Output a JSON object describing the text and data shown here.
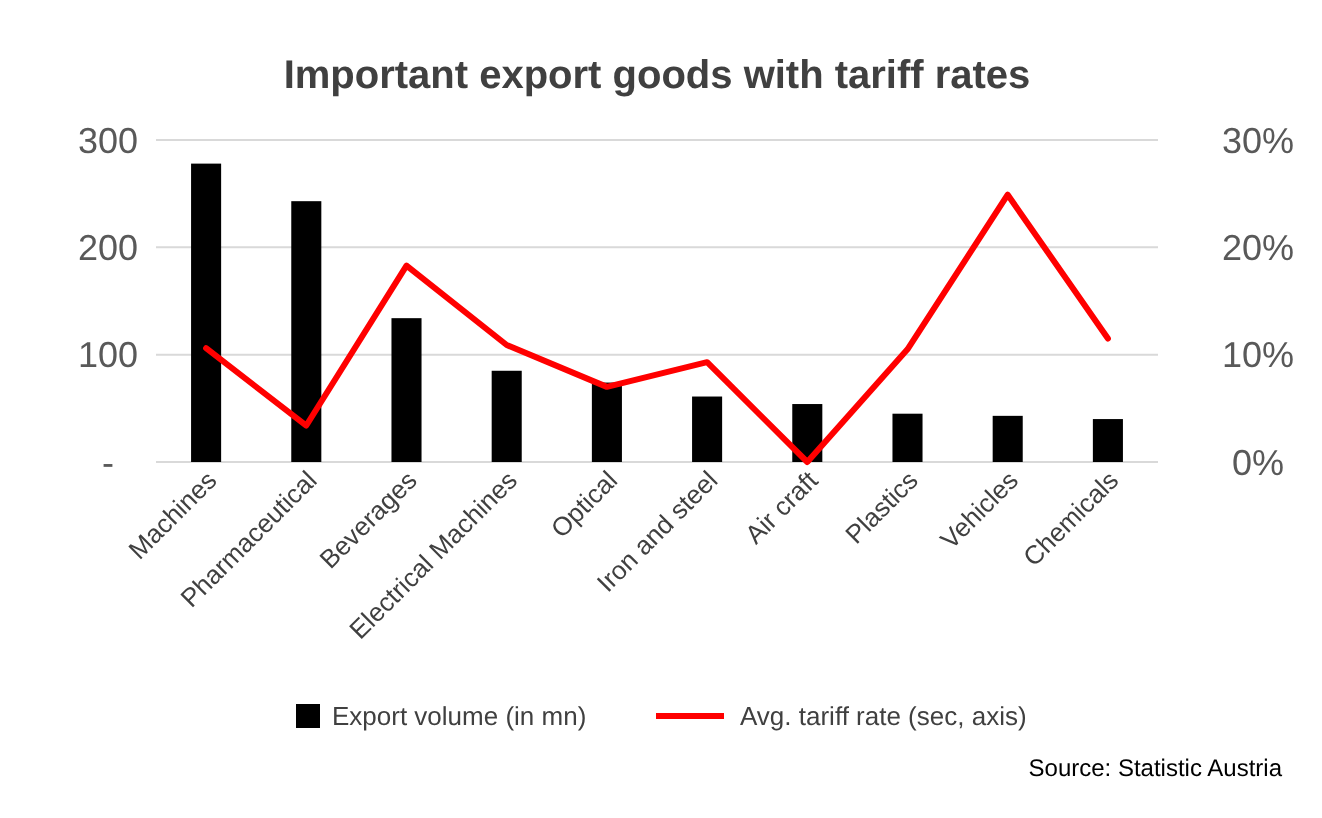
{
  "chart_data": {
    "type": "bar",
    "title": "Important export goods with tariff rates",
    "categories": [
      "Machines",
      "Pharmaceutical",
      "Beverages",
      "Electrical Machines",
      "Optical",
      "Iron and steel",
      "Air craft",
      "Plastics",
      "Vehicles",
      "Chemicals"
    ],
    "series": [
      {
        "name": "Export volume (in mn)",
        "color": "#000000",
        "values": [
          278,
          243,
          134,
          85,
          74,
          61,
          54,
          45,
          43,
          40
        ]
      },
      {
        "name": "Avg. tariff rate (sec, axis)",
        "type": "line",
        "axis": "y2",
        "color": "#ff0000",
        "values": [
          10.6,
          3.4,
          18.3,
          10.9,
          7.0,
          9.3,
          0,
          10.5,
          24.9,
          11.5
        ]
      }
    ],
    "ylim": [
      0,
      300
    ],
    "yticks": [
      {
        "value": 0,
        "label": "-"
      },
      100,
      200,
      300
    ],
    "y2lim": [
      0,
      30
    ],
    "y2ticks": [
      {
        "value": 0,
        "label": "0%"
      },
      {
        "value": 10,
        "label": "10%"
      },
      {
        "value": 20,
        "label": "20%"
      },
      {
        "value": 30,
        "label": "30%"
      }
    ],
    "grid": "y",
    "legend": "bottom",
    "marker": "none",
    "annotations": [
      "Source: Statistic Austria"
    ]
  }
}
